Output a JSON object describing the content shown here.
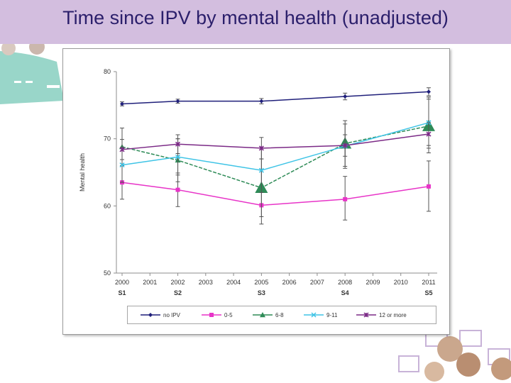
{
  "slide": {
    "title": "Time since IPV by mental health (unadjusted)",
    "colors": {
      "title_bar": "#d3bedf",
      "title_text": "#2b1f6b"
    },
    "decor": [
      "women-photos-collage"
    ]
  },
  "chart_data": {
    "type": "line",
    "title": "",
    "ylabel": "Mental health",
    "xlabel": "",
    "ylim": [
      50,
      80
    ],
    "yticks": [
      50,
      60,
      70,
      80
    ],
    "x": [
      2000,
      2001,
      2002,
      2003,
      2004,
      2005,
      2006,
      2007,
      2008,
      2009,
      2010,
      2011
    ],
    "survey_labels": [
      {
        "year": 2000,
        "label": "S1"
      },
      {
        "year": 2002,
        "label": "S2"
      },
      {
        "year": 2005,
        "label": "S3"
      },
      {
        "year": 2008,
        "label": "S4"
      },
      {
        "year": 2011,
        "label": "S5"
      }
    ],
    "grid": false,
    "legend_position": "bottom",
    "series": [
      {
        "name": "no IPV",
        "color": "#1f1f7a",
        "marker": "diamond",
        "points": [
          [
            2000,
            75.2
          ],
          [
            2002,
            75.6
          ],
          [
            2005,
            75.6
          ],
          [
            2008,
            76.3
          ],
          [
            2011,
            77.0
          ]
        ],
        "errors": [
          [
            74.9,
            75.5
          ],
          [
            75.3,
            75.9
          ],
          [
            75.2,
            76.0
          ],
          [
            75.8,
            76.8
          ],
          [
            76.4,
            77.6
          ]
        ]
      },
      {
        "name": "0-5",
        "color": "#e834c8",
        "marker": "square",
        "points": [
          [
            2000,
            63.5
          ],
          [
            2002,
            62.4
          ],
          [
            2005,
            60.1
          ],
          [
            2008,
            61.0
          ],
          [
            2011,
            62.9
          ]
        ],
        "errors": [
          [
            61.0,
            66.0
          ],
          [
            59.9,
            64.9
          ],
          [
            57.3,
            62.9
          ],
          [
            57.9,
            64.4
          ],
          [
            59.2,
            66.7
          ]
        ]
      },
      {
        "name": "6-8",
        "color": "#2e8b57",
        "marker": "triangle",
        "points": [
          [
            2000,
            68.8
          ],
          [
            2002,
            66.8
          ],
          [
            2005,
            62.7
          ],
          [
            2008,
            69.3
          ],
          [
            2011,
            71.9
          ]
        ],
        "errors": [
          [
            66.0,
            71.6
          ],
          [
            63.6,
            70.0
          ],
          [
            58.4,
            67.0
          ],
          [
            65.9,
            72.7
          ],
          [
            67.9,
            75.9
          ]
        ]
      },
      {
        "name": "9-11",
        "color": "#3fc4e6",
        "marker": "x",
        "points": [
          [
            2000,
            66.1
          ],
          [
            2002,
            67.3
          ],
          [
            2005,
            65.3
          ],
          [
            2008,
            68.9
          ],
          [
            2011,
            72.4
          ]
        ],
        "errors": [
          [
            63.5,
            68.7
          ],
          [
            64.6,
            70.0
          ],
          [
            62.0,
            68.6
          ],
          [
            65.6,
            72.2
          ],
          [
            68.6,
            76.2
          ]
        ]
      },
      {
        "name": "12 or more",
        "color": "#7b2a86",
        "marker": "star",
        "points": [
          [
            2000,
            68.4
          ],
          [
            2002,
            69.2
          ],
          [
            2005,
            68.6
          ],
          [
            2008,
            69.0
          ],
          [
            2011,
            70.7
          ]
        ],
        "errors": [
          [
            66.9,
            69.9
          ],
          [
            67.8,
            70.6
          ],
          [
            67.0,
            70.2
          ],
          [
            67.4,
            70.6
          ],
          [
            69.0,
            72.4
          ]
        ]
      }
    ]
  }
}
